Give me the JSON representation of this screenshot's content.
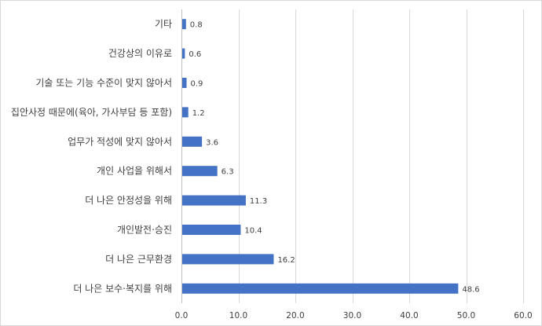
{
  "chart_data": {
    "type": "bar",
    "orientation": "horizontal",
    "categories": [
      "기타",
      "건강상의 이유로",
      "기술 또는 기능 수준이 맞지 않아서",
      "집안사정 때문에(육아, 가사부담 등 포함)",
      "업무가 적성에 맞지 않아서",
      "개인 사업을 위해서",
      "더 나은 안정성을 위해",
      "개인발전·승진",
      "더 나은 근무환경",
      "더 나은 보수·복지를 위해"
    ],
    "values": [
      0.8,
      0.6,
      0.9,
      1.2,
      3.6,
      6.3,
      11.3,
      10.4,
      16.2,
      48.6
    ],
    "data_labels": [
      "0.8",
      "0.6",
      "0.9",
      "1.2",
      "3.6",
      "6.3",
      "11.3",
      "10.4",
      "16.2",
      "48.6"
    ],
    "xlim": [
      0,
      60
    ],
    "xticks": [
      0,
      10,
      20,
      30,
      40,
      50,
      60
    ],
    "xtick_labels": [
      "0.0",
      "10.0",
      "20.0",
      "30.0",
      "40.0",
      "50.0",
      "60.0"
    ],
    "grid": true,
    "legend": "none",
    "bar_color": "#4472c4",
    "grid_color": "#d9d9d9"
  }
}
